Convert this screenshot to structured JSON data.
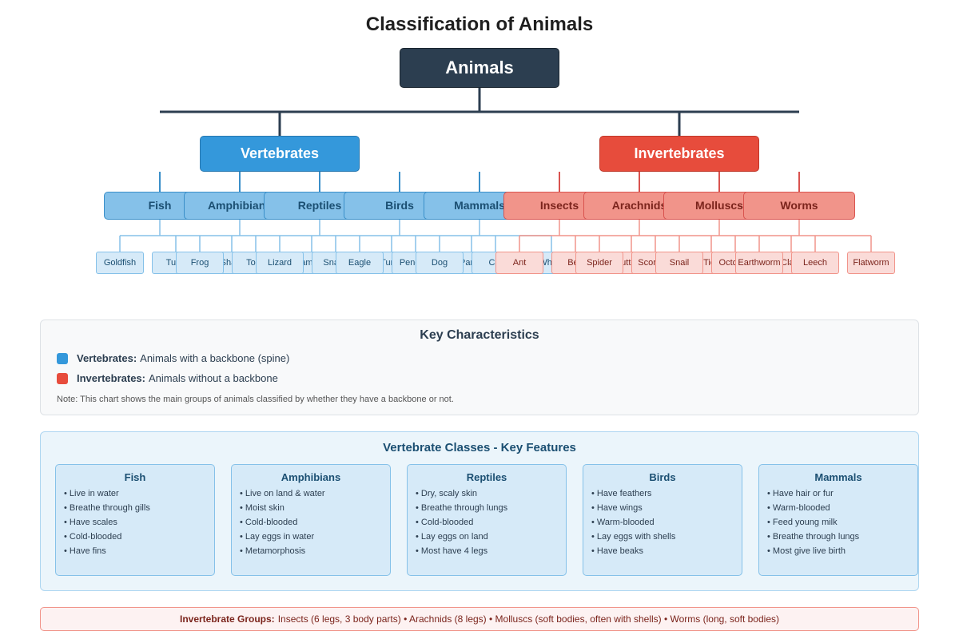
{
  "title": "Classification of Animals",
  "root": "Animals",
  "colors": {
    "vertebrates": "#3498db",
    "invertebrates": "#e74c3c",
    "root": "#2c3e50"
  },
  "groups": [
    {
      "label": "Vertebrates",
      "kind": "vert",
      "classes": [
        {
          "label": "Fish",
          "examples": [
            "Goldfish",
            "Tuna",
            "Shark"
          ]
        },
        {
          "label": "Amphibians",
          "examples": [
            "Frog",
            "Toad",
            "Salamander"
          ]
        },
        {
          "label": "Reptiles",
          "examples": [
            "Lizard",
            "Snake",
            "Turtle"
          ]
        },
        {
          "label": "Birds",
          "examples": [
            "Eagle",
            "Penguin",
            "Parrot"
          ]
        },
        {
          "label": "Mammals",
          "examples": [
            "Dog",
            "Cat",
            "Whale"
          ]
        }
      ]
    },
    {
      "label": "Invertebrates",
      "kind": "inv",
      "classes": [
        {
          "label": "Insects",
          "examples": [
            "Ant",
            "Bee",
            "Butterfly"
          ]
        },
        {
          "label": "Arachnids",
          "examples": [
            "Spider",
            "Scorpion",
            "Tick"
          ]
        },
        {
          "label": "Molluscs",
          "examples": [
            "Snail",
            "Octopus",
            "Clam"
          ]
        },
        {
          "label": "Worms",
          "examples": [
            "Earthworm",
            "Leech",
            "Flatworm"
          ]
        }
      ]
    }
  ],
  "key": {
    "title": "Key Characteristics",
    "vert_label": "Vertebrates:",
    "vert_text": "Animals with a backbone (spine)",
    "inv_label": "Invertebrates:",
    "inv_text": "Animals without a backbone",
    "note": "Note: This chart shows the main groups of animals classified by whether they have a backbone or not."
  },
  "vertebrate_classes": {
    "title": "Vertebrate Classes - Key Features",
    "cards": [
      {
        "title": "Fish",
        "items": [
          "Live in water",
          "Breathe through gills",
          "Have scales",
          "Cold-blooded",
          "Have fins"
        ]
      },
      {
        "title": "Amphibians",
        "items": [
          "Live on land & water",
          "Moist skin",
          "Cold-blooded",
          "Lay eggs in water",
          "Metamorphosis"
        ]
      },
      {
        "title": "Reptiles",
        "items": [
          "Dry, scaly skin",
          "Breathe through lungs",
          "Cold-blooded",
          "Lay eggs on land",
          "Most have 4 legs"
        ]
      },
      {
        "title": "Birds",
        "items": [
          "Have feathers",
          "Have wings",
          "Warm-blooded",
          "Lay eggs with shells",
          "Have beaks"
        ]
      },
      {
        "title": "Mammals",
        "items": [
          "Have hair or fur",
          "Warm-blooded",
          "Feed young milk",
          "Breathe through lungs",
          "Most give live birth"
        ]
      }
    ]
  },
  "invertebrate_groups": {
    "label": "Invertebrate Groups:",
    "text": "Insects (6 legs, 3 body parts) • Arachnids (8 legs) • Molluscs (soft bodies, often with shells) • Worms (long, soft bodies)"
  }
}
